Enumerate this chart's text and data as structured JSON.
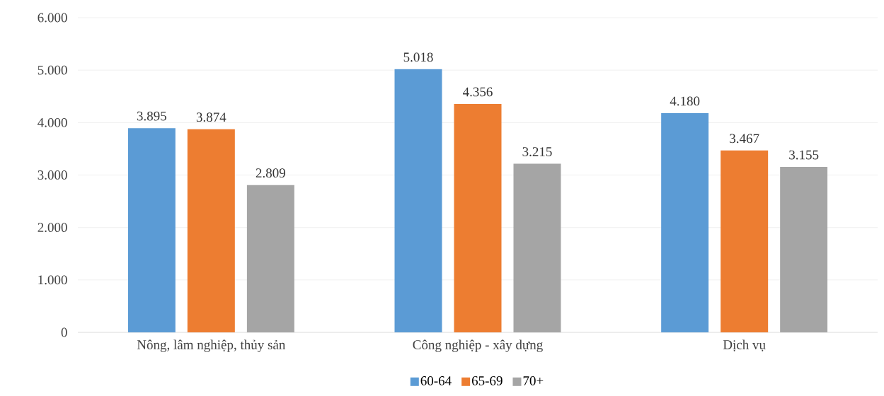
{
  "chart_data": {
    "type": "bar",
    "categories": [
      "Nông, lâm nghiệp, thủy sản",
      "Công nghiệp - xây dựng",
      "Dịch vụ"
    ],
    "series": [
      {
        "name": "60-64",
        "color": "#5b9bd5",
        "values": [
          3895,
          5018,
          4180
        ],
        "value_labels": [
          "3.895",
          "5.018",
          "4.180"
        ]
      },
      {
        "name": "65-69",
        "color": "#ed7d31",
        "values": [
          3874,
          4356,
          3467
        ],
        "value_labels": [
          "3.874",
          "4.356",
          "3.467"
        ]
      },
      {
        "name": "70+",
        "color": "#a5a5a5",
        "values": [
          2809,
          3215,
          3155
        ],
        "value_labels": [
          "2.809",
          "3.215",
          "3.155"
        ]
      }
    ],
    "ylim": [
      0,
      6000
    ],
    "yticks": [
      {
        "value": 0,
        "label": "0"
      },
      {
        "value": 1000,
        "label": "1.000"
      },
      {
        "value": 2000,
        "label": "2.000"
      },
      {
        "value": 3000,
        "label": "3.000"
      },
      {
        "value": 4000,
        "label": "4.000"
      },
      {
        "value": 5000,
        "label": "5.000"
      },
      {
        "value": 6000,
        "label": "6.000"
      }
    ],
    "grid": "y",
    "legend": "bottom"
  }
}
